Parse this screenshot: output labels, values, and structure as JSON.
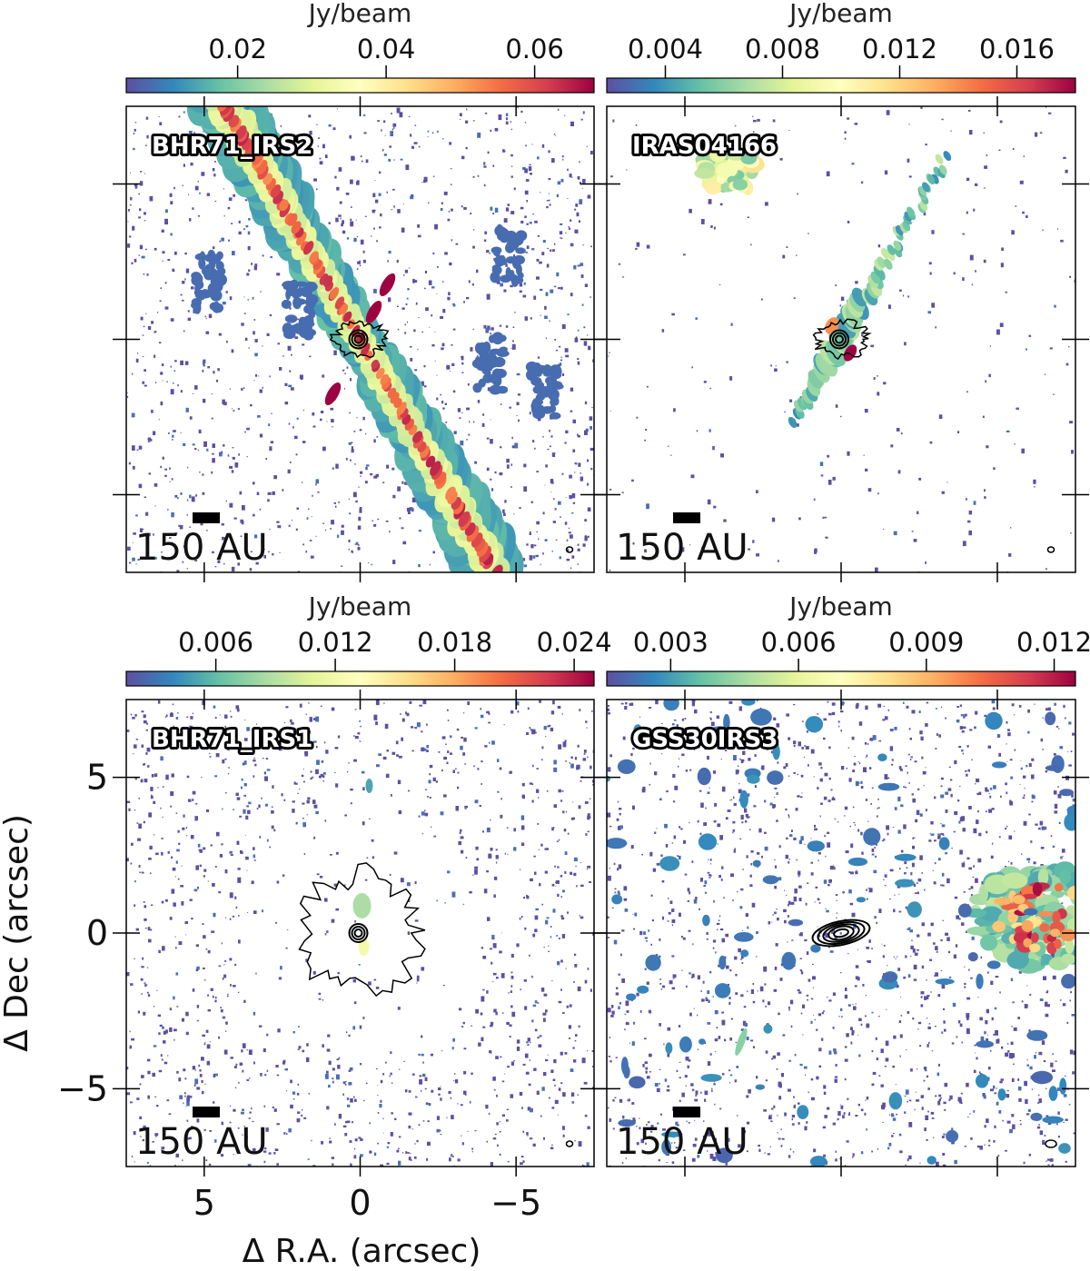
{
  "figure": {
    "xlabel": "Δ R.A. (arcsec)",
    "ylabel": "Δ Dec (arcsec)",
    "scalebar_label": "150 AU",
    "colormap": [
      "#5e4fa2",
      "#3288bd",
      "#66c2a5",
      "#abdda4",
      "#e6f598",
      "#ffffbf",
      "#fee08b",
      "#fdae61",
      "#f46d43",
      "#d53e4f",
      "#9e0142"
    ]
  },
  "chart_data": [
    {
      "type": "heatmap",
      "source": "BHR71_IRS2",
      "colorbar": {
        "label": "Jy/beam",
        "min": 0.005,
        "max": 0.068,
        "ticks": [
          "0.02",
          "0.04",
          "0.06"
        ]
      },
      "xlim": [
        7.5,
        -7.5
      ],
      "ylim": [
        -7.5,
        7.5
      ],
      "xticks": [],
      "yticks": [],
      "features": {
        "outflow_pa_deg": 30,
        "contours_at_origin": true
      }
    },
    {
      "type": "heatmap",
      "source": "IRAS04166",
      "colorbar": {
        "label": "Jy/beam",
        "min": 0.002,
        "max": 0.018,
        "ticks": [
          "0.004",
          "0.008",
          "0.012",
          "0.016"
        ]
      },
      "xlim": [
        7.5,
        -7.5
      ],
      "ylim": [
        -7.5,
        7.5
      ],
      "xticks": [],
      "yticks": [],
      "features": {
        "outflow_pa_deg": -30,
        "contours_at_origin": true
      }
    },
    {
      "type": "heatmap",
      "source": "BHR71_IRS1",
      "colorbar": {
        "label": "Jy/beam",
        "min": 0.0015,
        "max": 0.025,
        "ticks": [
          "0.006",
          "0.012",
          "0.018",
          "0.024"
        ]
      },
      "xlim": [
        7.5,
        -7.5
      ],
      "ylim": [
        -7.5,
        7.5
      ],
      "xticks": [
        -5,
        0,
        5
      ],
      "yticks": [
        -5,
        0,
        5
      ],
      "features": {
        "compact_emission": true,
        "contours_at_origin": true
      }
    },
    {
      "type": "heatmap",
      "source": "GSS30IRS3",
      "colorbar": {
        "label": "Jy/beam",
        "min": 0.0015,
        "max": 0.0125,
        "ticks": [
          "0.003",
          "0.006",
          "0.009",
          "0.012"
        ]
      },
      "xlim": [
        7.5,
        -7.5
      ],
      "ylim": [
        -7.5,
        7.5
      ],
      "xticks": [],
      "yticks": [],
      "features": {
        "bright_clump_offset": [
          -6.5,
          0.5
        ],
        "contours_at_origin": true
      }
    }
  ]
}
